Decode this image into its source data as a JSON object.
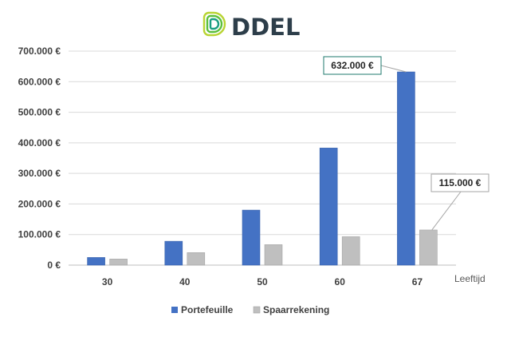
{
  "logo": {
    "text": "DDEL",
    "color_text": "#2d3e4a",
    "color_ring_outer": "#b8d432",
    "color_ring_mid": "#5bbf3c",
    "color_ring_inner": "#1a9e82"
  },
  "chart_data": {
    "type": "bar",
    "title": "",
    "xlabel": "Leeftijd",
    "ylabel": "",
    "categories": [
      "30",
      "40",
      "50",
      "60",
      "67"
    ],
    "series": [
      {
        "name": "Portefeuille",
        "values": [
          25000,
          78000,
          180000,
          383000,
          632000
        ],
        "color": "#4472c4"
      },
      {
        "name": "Spaarrekening",
        "values": [
          20000,
          41000,
          67000,
          93000,
          115000
        ],
        "color": "#bfbfbf"
      }
    ],
    "ylim": [
      0,
      700000
    ],
    "yticks": [
      {
        "value": 0,
        "label": "0 €"
      },
      {
        "value": 100000,
        "label": "100.000 €"
      },
      {
        "value": 200000,
        "label": "200.000 €"
      },
      {
        "value": 300000,
        "label": "300.000 €"
      },
      {
        "value": 400000,
        "label": "400.000 €"
      },
      {
        "value": 500000,
        "label": "500.000 €"
      },
      {
        "value": 600000,
        "label": "600.000 €"
      },
      {
        "value": 700000,
        "label": "700.000 €"
      }
    ],
    "grid": true,
    "legend_position": "bottom",
    "annotations": [
      {
        "text": "632.000 €",
        "series": 0,
        "category": "67",
        "border_color": "#1f7a6e"
      },
      {
        "text": "115.000 €",
        "series": 1,
        "category": "67",
        "border_color": "#a6a6a6"
      }
    ]
  }
}
